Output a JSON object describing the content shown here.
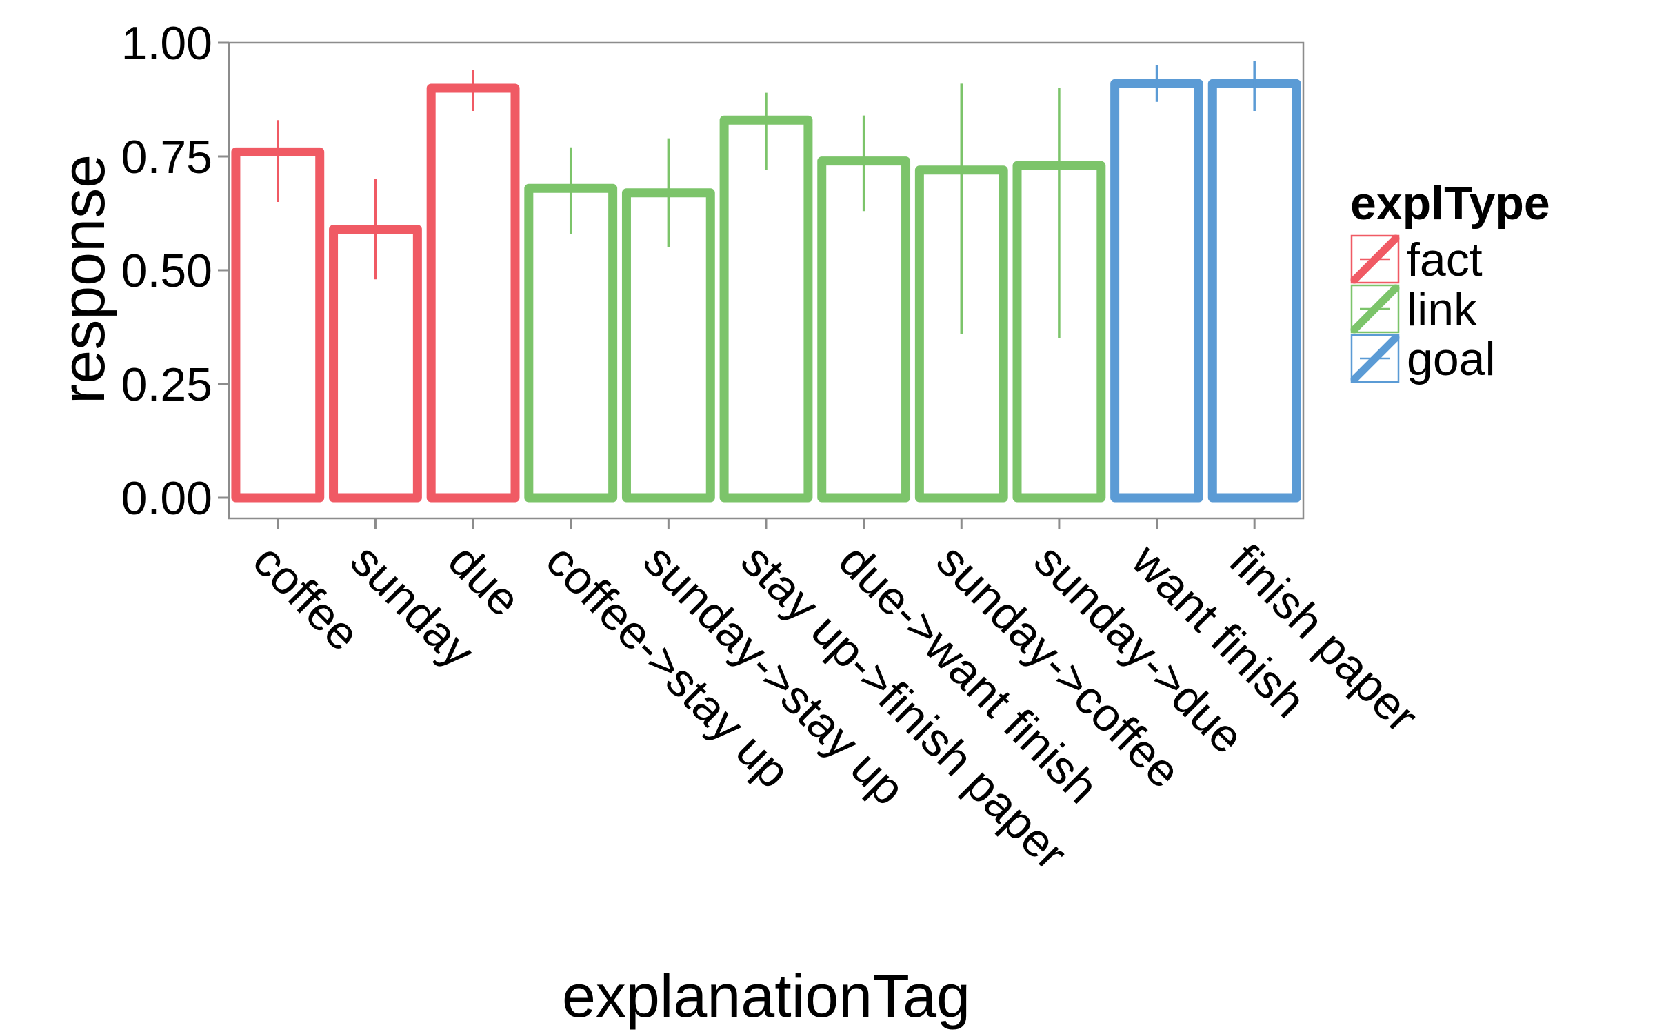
{
  "chart_data": {
    "type": "bar",
    "xlabel": "explanationTag",
    "ylabel": "response",
    "ylim": [
      -0.05,
      1.0
    ],
    "yticks": [
      "0.00",
      "0.25",
      "0.50",
      "0.75",
      "1.00"
    ],
    "ytick_values": [
      0,
      0.25,
      0.5,
      0.75,
      1.0
    ],
    "grid": false,
    "legend": {
      "title": "explType",
      "position": "right",
      "entries": [
        {
          "label": "fact",
          "color": "#f05a64"
        },
        {
          "label": "link",
          "color": "#7cc46a"
        },
        {
          "label": "goal",
          "color": "#5b9bd5"
        }
      ]
    },
    "categories": [
      "coffee",
      "sunday",
      "due",
      "coffee->stay up",
      "sunday->stay up",
      "stay up->finish paper",
      "due->want finish",
      "sunday->coffee",
      "sunday->due",
      "want finish",
      "finish paper"
    ],
    "group": [
      "fact",
      "fact",
      "fact",
      "link",
      "link",
      "link",
      "link",
      "link",
      "link",
      "goal",
      "goal"
    ],
    "values": [
      0.76,
      0.59,
      0.9,
      0.68,
      0.67,
      0.83,
      0.74,
      0.72,
      0.73,
      0.91,
      0.91
    ],
    "error_low": [
      0.65,
      0.48,
      0.85,
      0.58,
      0.55,
      0.72,
      0.63,
      0.36,
      0.35,
      0.87,
      0.85
    ],
    "error_high": [
      0.83,
      0.7,
      0.94,
      0.77,
      0.79,
      0.89,
      0.84,
      0.91,
      0.9,
      0.95,
      0.96
    ]
  }
}
